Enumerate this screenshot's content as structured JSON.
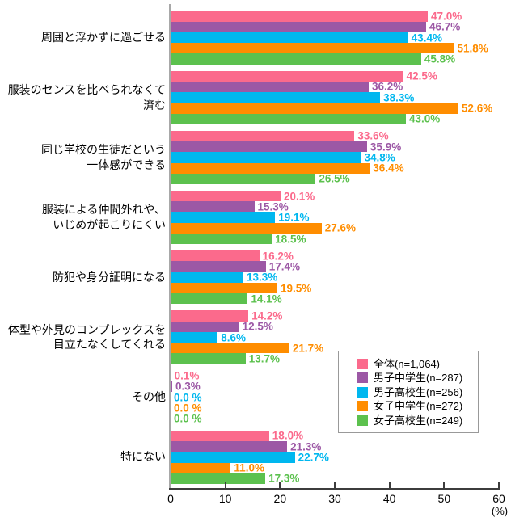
{
  "chart_data": {
    "type": "bar",
    "orientation": "horizontal",
    "title": "",
    "axis": {
      "xlim": [
        0,
        60
      ],
      "ticks": [
        0,
        10,
        20,
        30,
        40,
        50,
        60
      ],
      "unit_label": "(%)",
      "grid": false
    },
    "legend_position": "bottom-right",
    "series": [
      {
        "name": "全体(n=1,064)",
        "color": "#FB6A8C"
      },
      {
        "name": "男子中学生(n=287)",
        "color": "#9C58A5"
      },
      {
        "name": "男子高校生(n=256)",
        "color": "#00B7EF"
      },
      {
        "name": "女子中学生(n=272)",
        "color": "#FF8D00"
      },
      {
        "name": "女子高校生(n=249)",
        "color": "#5CC14E"
      }
    ],
    "categories": [
      {
        "label": "周囲と浮かずに過ごせる",
        "values": [
          47.0,
          46.7,
          43.4,
          51.8,
          45.8
        ],
        "value_labels": [
          "47.0%",
          "46.7%",
          "43.4%",
          "51.8%",
          "45.8%"
        ]
      },
      {
        "label": "服装のセンスを比べられなくて済む",
        "values": [
          42.5,
          36.2,
          38.3,
          52.6,
          43.0
        ],
        "value_labels": [
          "42.5%",
          "36.2%",
          "38.3%",
          "52.6%",
          "43.0%"
        ]
      },
      {
        "label": "同じ学校の生徒だという\n一体感ができる",
        "values": [
          33.6,
          35.9,
          34.8,
          36.4,
          26.5
        ],
        "value_labels": [
          "33.6%",
          "35.9%",
          "34.8%",
          "36.4%",
          "26.5%"
        ]
      },
      {
        "label": "服装による仲間外れや、\nいじめが起こりにくい",
        "values": [
          20.1,
          15.3,
          19.1,
          27.6,
          18.5
        ],
        "value_labels": [
          "20.1%",
          "15.3%",
          "19.1%",
          "27.6%",
          "18.5%"
        ]
      },
      {
        "label": "防犯や身分証明になる",
        "values": [
          16.2,
          17.4,
          13.3,
          19.5,
          14.1
        ],
        "value_labels": [
          "16.2%",
          "17.4%",
          "13.3%",
          "19.5%",
          "14.1%"
        ]
      },
      {
        "label": "体型や外見のコンプレックスを\n目立たなくしてくれる",
        "values": [
          14.2,
          12.5,
          8.6,
          21.7,
          13.7
        ],
        "value_labels": [
          "14.2%",
          "12.5%",
          "8.6%",
          "21.7%",
          "13.7%"
        ]
      },
      {
        "label": "その他",
        "values": [
          0.1,
          0.3,
          0.0,
          0.0,
          0.0
        ],
        "value_labels": [
          "0.1%",
          "0.3%",
          "0.0 %",
          "0.0 %",
          "0.0 %"
        ]
      },
      {
        "label": "特にない",
        "values": [
          18.0,
          21.3,
          22.7,
          11.0,
          17.3
        ],
        "value_labels": [
          "18.0%",
          "21.3%",
          "22.7%",
          "11.0%",
          "17.3%"
        ]
      }
    ]
  }
}
